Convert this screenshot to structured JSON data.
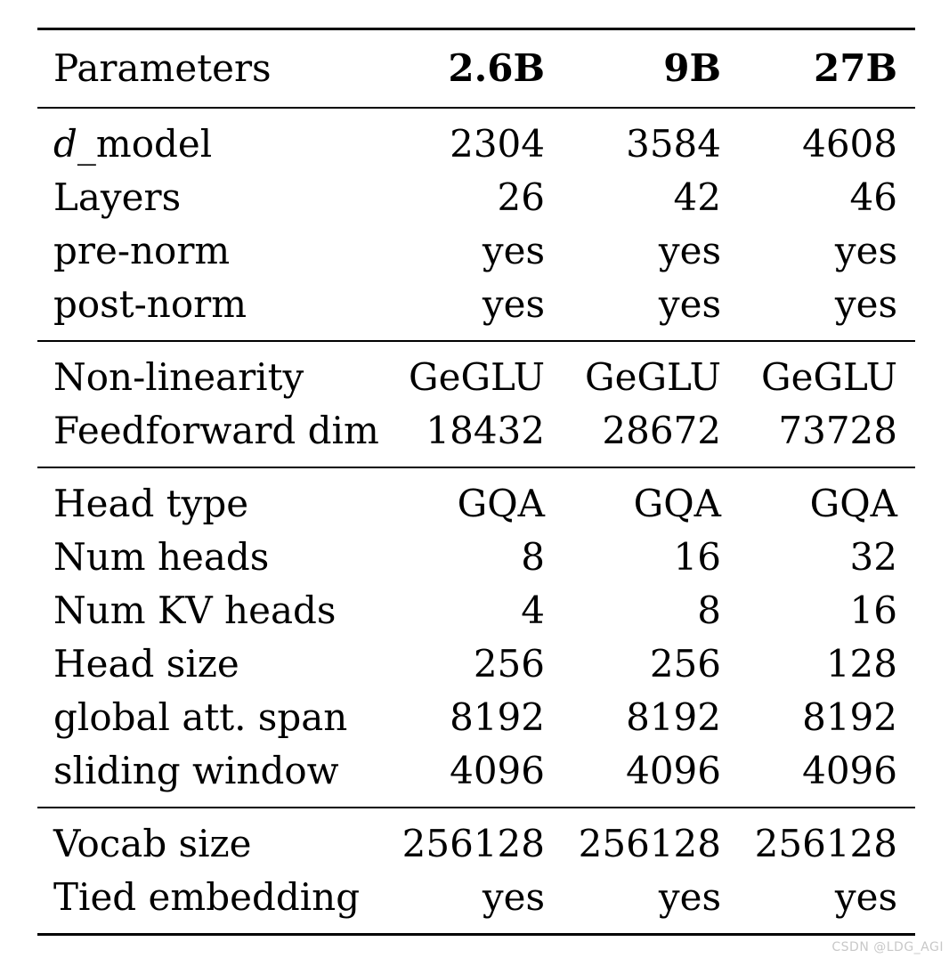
{
  "table": {
    "header": {
      "label": "Parameters",
      "columns": [
        "2.6B",
        "9B",
        "27B"
      ]
    },
    "groups": [
      {
        "rows": [
          {
            "label_prefix": "d",
            "label_suffix": "_model",
            "values": [
              "2304",
              "3584",
              "4608"
            ]
          },
          {
            "label": "Layers",
            "values": [
              "26",
              "42",
              "46"
            ]
          },
          {
            "label": "pre-norm",
            "values": [
              "yes",
              "yes",
              "yes"
            ]
          },
          {
            "label": "post-norm",
            "values": [
              "yes",
              "yes",
              "yes"
            ]
          }
        ]
      },
      {
        "rows": [
          {
            "label": "Non-linearity",
            "values": [
              "GeGLU",
              "GeGLU",
              "GeGLU"
            ]
          },
          {
            "label": "Feedforward dim",
            "values": [
              "18432",
              "28672",
              "73728"
            ]
          }
        ]
      },
      {
        "rows": [
          {
            "label": "Head type",
            "values": [
              "GQA",
              "GQA",
              "GQA"
            ]
          },
          {
            "label": "Num heads",
            "values": [
              "8",
              "16",
              "32"
            ]
          },
          {
            "label": "Num KV heads",
            "values": [
              "4",
              "8",
              "16"
            ]
          },
          {
            "label": "Head size",
            "values": [
              "256",
              "256",
              "128"
            ]
          },
          {
            "label": "global att. span",
            "values": [
              "8192",
              "8192",
              "8192"
            ]
          },
          {
            "label": "sliding window",
            "values": [
              "4096",
              "4096",
              "4096"
            ]
          }
        ]
      },
      {
        "rows": [
          {
            "label": "Vocab size",
            "values": [
              "256128",
              "256128",
              "256128"
            ]
          },
          {
            "label": "Tied embedding",
            "values": [
              "yes",
              "yes",
              "yes"
            ]
          }
        ]
      }
    ]
  },
  "watermark": "CSDN @LDG_AGI"
}
